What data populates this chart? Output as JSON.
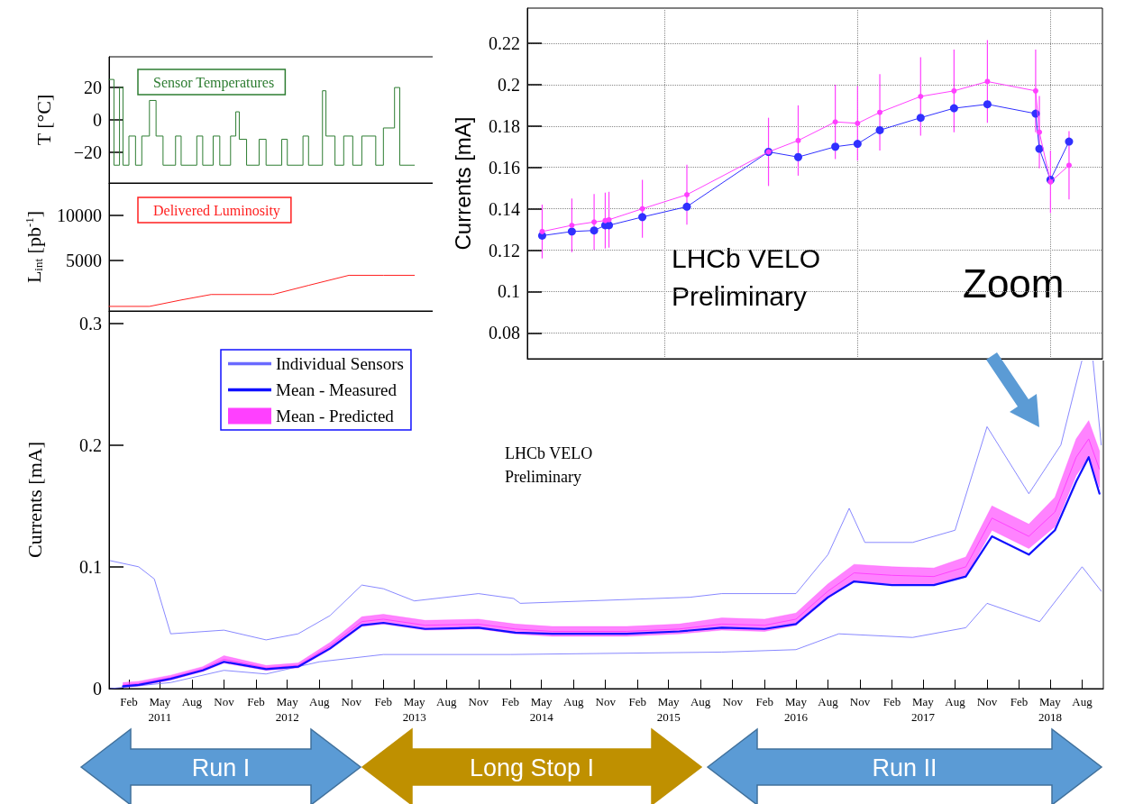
{
  "chart_data": [
    {
      "type": "step",
      "ylabel": "T [°C]",
      "xlim": [
        "2010-12-06",
        "2018-10-01"
      ],
      "ylim": [
        -39,
        39
      ],
      "yticks": [
        {
          "value": -20,
          "label": "−20"
        },
        0,
        20
      ],
      "tick_labels": "y",
      "grid": false,
      "legend": "top left",
      "marker": "none",
      "series": [
        {
          "name": "Sensor Temperatures",
          "color": "#2e7d32",
          "x": [
            "2010-12-06",
            "2010-12-20",
            "2011-01-05",
            "2011-01-15",
            "2011-02-01",
            "2011-02-20",
            "2011-03-10",
            "2011-04-01",
            "2011-04-20",
            "2011-05-10",
            "2011-06-15",
            "2011-07-01",
            "2011-08-15",
            "2011-09-01",
            "2011-10-01",
            "2011-10-20",
            "2011-11-20",
            "2011-12-05",
            "2011-12-15",
            "2012-01-05",
            "2012-02-10",
            "2012-03-01",
            "2012-04-15",
            "2012-05-01",
            "2012-06-15",
            "2012-07-01",
            "2012-08-10",
            "2012-08-20",
            "2012-09-15",
            "2012-10-10",
            "2012-11-05",
            "2012-12-01",
            "2013-01-10",
            "2013-02-01",
            "2013-03-05",
            "2013-03-20",
            "2013-05-01"
          ],
          "values": [
            25,
            -28,
            20,
            -28,
            -10,
            -28,
            -10,
            12,
            -10,
            -28,
            -10,
            -28,
            -10,
            -28,
            -10,
            -28,
            -10,
            5,
            -12,
            -28,
            -12,
            -28,
            -12,
            -28,
            -10,
            -28,
            18,
            -10,
            -28,
            -10,
            -28,
            -10,
            -28,
            -5,
            20,
            -28,
            -28
          ]
        }
      ]
    },
    {
      "type": "line",
      "ylabel": "L$_{int}$ [pb$^{-1}$]",
      "xlim": [
        "2010-12-06",
        "2018-10-01"
      ],
      "ylim": [
        -500,
        13500
      ],
      "yticks": [
        5000,
        10000
      ],
      "tick_labels": "y",
      "grid": false,
      "legend": "top left",
      "marker": "none",
      "series": [
        {
          "name": "Delivered Luminosity",
          "color": "#ff2020",
          "x": [
            "2010-12-06",
            "2011-04-01",
            "2011-07-01",
            "2011-09-25",
            "2012-03-20",
            "2012-07-01",
            "2012-10-25",
            "2013-02-01",
            "2013-05-01"
          ],
          "values": [
            0,
            0,
            700,
            1300,
            1300,
            2300,
            3400,
            3400,
            3400
          ]
        }
      ]
    },
    {
      "type": "line",
      "ylabel": "Currents [mA]",
      "xlim": [
        "2010-12-06",
        "2018-10-01"
      ],
      "ylim": [
        0,
        0.31
      ],
      "yticks": [
        0,
        0.1,
        0.2,
        0.3
      ],
      "grid": false,
      "legend": "top left",
      "marker": "none",
      "xticks": [
        {
          "value": "2011-02-01",
          "label": "Feb"
        },
        {
          "value": "2011-05-01",
          "label": "May\n2011"
        },
        {
          "value": "2011-08-01",
          "label": "Aug"
        },
        {
          "value": "2011-11-01",
          "label": "Nov"
        },
        {
          "value": "2012-02-01",
          "label": "Feb"
        },
        {
          "value": "2012-05-01",
          "label": "May\n2012"
        },
        {
          "value": "2012-08-01",
          "label": "Aug"
        },
        {
          "value": "2012-11-01",
          "label": "Nov"
        },
        {
          "value": "2013-02-01",
          "label": "Feb"
        },
        {
          "value": "2013-05-01",
          "label": "May\n2013"
        },
        {
          "value": "2013-08-01",
          "label": "Aug"
        },
        {
          "value": "2013-11-01",
          "label": "Nov"
        },
        {
          "value": "2014-02-01",
          "label": "Feb"
        },
        {
          "value": "2014-05-01",
          "label": "May\n2014"
        },
        {
          "value": "2014-08-01",
          "label": "Aug"
        },
        {
          "value": "2014-11-01",
          "label": "Nov"
        },
        {
          "value": "2015-02-01",
          "label": "Feb"
        },
        {
          "value": "2015-05-01",
          "label": "May\n2015"
        },
        {
          "value": "2015-08-01",
          "label": "Aug"
        },
        {
          "value": "2015-11-01",
          "label": "Nov"
        },
        {
          "value": "2016-02-01",
          "label": "Feb"
        },
        {
          "value": "2016-05-01",
          "label": "May\n2016"
        },
        {
          "value": "2016-08-01",
          "label": "Aug"
        },
        {
          "value": "2016-11-01",
          "label": "Nov"
        },
        {
          "value": "2017-02-01",
          "label": "Feb"
        },
        {
          "value": "2017-05-01",
          "label": "May\n2017"
        },
        {
          "value": "2017-08-01",
          "label": "Aug"
        },
        {
          "value": "2017-11-01",
          "label": "Nov"
        },
        {
          "value": "2018-02-01",
          "label": "Feb"
        },
        {
          "value": "2018-05-01",
          "label": "May\n2018"
        },
        {
          "value": "2018-08-01",
          "label": "Aug"
        }
      ],
      "annotations": [
        "LHCb VELO\nPreliminary",
        "Run I",
        "Long Stop I",
        "Run II"
      ],
      "series": [
        {
          "name": "Individual Sensors",
          "color": "#6a6aff",
          "x": [
            "2010-12-10",
            "2011-03-01",
            "2011-04-15",
            "2011-06-01",
            "2011-11-01",
            "2012-03-01",
            "2012-06-01",
            "2012-09-01",
            "2012-12-01",
            "2013-02-01",
            "2013-05-01",
            "2013-11-01",
            "2014-02-10",
            "2014-03-01",
            "2015-07-01",
            "2015-10-01",
            "2016-05-01",
            "2016-08-01",
            "2016-10-01",
            "2016-11-15",
            "2017-04-01",
            "2017-08-01",
            "2017-11-01",
            "2018-03-01",
            "2018-06-01",
            "2018-08-01",
            "2018-09-01",
            "2018-09-25"
          ],
          "values": [
            0.105,
            0.1,
            0.09,
            0.045,
            0.048,
            0.04,
            0.045,
            0.06,
            0.085,
            0.082,
            0.072,
            0.078,
            0.074,
            0.07,
            0.075,
            0.078,
            0.078,
            0.11,
            0.148,
            0.12,
            0.12,
            0.13,
            0.215,
            0.16,
            0.2,
            0.27,
            0.27,
            0.2
          ]
        },
        {
          "color": "#6a6aff",
          "x": [
            "2010-12-10",
            "2011-06-01",
            "2011-11-01",
            "2012-03-01",
            "2012-08-01",
            "2013-02-01",
            "2014-02-01",
            "2015-10-01",
            "2016-05-01",
            "2016-09-01",
            "2017-04-01",
            "2017-09-01",
            "2017-11-01",
            "2018-04-01",
            "2018-08-01",
            "2018-09-25"
          ],
          "values": [
            0.0,
            0.005,
            0.015,
            0.012,
            0.022,
            0.028,
            0.028,
            0.03,
            0.032,
            0.045,
            0.042,
            0.05,
            0.07,
            0.055,
            0.1,
            0.08
          ]
        },
        {
          "name": "Mean - Measured",
          "color": "#1010ff",
          "x": [
            "2011-01-15",
            "2011-03-01",
            "2011-06-01",
            "2011-09-01",
            "2011-11-01",
            "2012-03-01",
            "2012-06-01",
            "2012-09-01",
            "2012-12-01",
            "2013-02-01",
            "2013-06-01",
            "2013-11-01",
            "2014-02-15",
            "2014-06-01",
            "2015-01-01",
            "2015-06-01",
            "2015-10-01",
            "2016-02-01",
            "2016-05-01",
            "2016-08-01",
            "2016-10-15",
            "2017-02-01",
            "2017-06-01",
            "2017-09-01",
            "2017-11-15",
            "2018-03-01",
            "2018-05-15",
            "2018-07-15",
            "2018-08-20",
            "2018-09-20"
          ],
          "values": [
            0.002,
            0.003,
            0.008,
            0.015,
            0.022,
            0.016,
            0.018,
            0.033,
            0.052,
            0.054,
            0.049,
            0.05,
            0.046,
            0.045,
            0.045,
            0.047,
            0.05,
            0.049,
            0.053,
            0.075,
            0.088,
            0.085,
            0.085,
            0.092,
            0.125,
            0.11,
            0.13,
            0.17,
            0.19,
            0.16
          ]
        },
        {
          "name": "Mean - Predicted",
          "color": "#ff40ff",
          "x": [
            "2011-01-15",
            "2011-03-01",
            "2011-06-01",
            "2011-09-01",
            "2011-11-01",
            "2012-03-01",
            "2012-06-01",
            "2012-09-01",
            "2012-12-01",
            "2013-02-01",
            "2013-06-01",
            "2013-11-01",
            "2014-02-15",
            "2014-06-01",
            "2015-01-01",
            "2015-06-01",
            "2015-10-01",
            "2016-02-01",
            "2016-05-01",
            "2016-08-01",
            "2016-10-15",
            "2017-02-01",
            "2017-06-01",
            "2017-09-01",
            "2017-11-15",
            "2018-03-01",
            "2018-05-15",
            "2018-07-15",
            "2018-08-20",
            "2018-09-20"
          ],
          "values": [
            0.003,
            0.004,
            0.009,
            0.016,
            0.024,
            0.017,
            0.019,
            0.035,
            0.055,
            0.057,
            0.052,
            0.053,
            0.049,
            0.047,
            0.047,
            0.049,
            0.053,
            0.052,
            0.057,
            0.08,
            0.095,
            0.093,
            0.092,
            0.1,
            0.14,
            0.125,
            0.145,
            0.19,
            0.205,
            0.18
          ],
          "lower": [
            0.001,
            0.002,
            0.007,
            0.014,
            0.021,
            0.015,
            0.017,
            0.032,
            0.051,
            0.053,
            0.048,
            0.049,
            0.045,
            0.043,
            0.043,
            0.045,
            0.048,
            0.047,
            0.052,
            0.074,
            0.088,
            0.086,
            0.085,
            0.092,
            0.13,
            0.115,
            0.133,
            0.175,
            0.19,
            0.165
          ],
          "upper": [
            0.005,
            0.006,
            0.011,
            0.018,
            0.027,
            0.019,
            0.021,
            0.038,
            0.059,
            0.061,
            0.056,
            0.057,
            0.053,
            0.051,
            0.051,
            0.053,
            0.058,
            0.057,
            0.062,
            0.086,
            0.102,
            0.1,
            0.099,
            0.108,
            0.15,
            0.135,
            0.157,
            0.205,
            0.22,
            0.195
          ]
        }
      ]
    },
    {
      "type": "line",
      "ylabel": "Currents [mA]",
      "ylim": [
        0.0675,
        0.237
      ],
      "yticks": [
        0.08,
        0.1,
        0.12,
        0.14,
        0.16,
        0.18,
        0.2,
        0.22
      ],
      "tick_labels": "y",
      "grid": true,
      "marker": "circle",
      "categories": [
        null,
        null,
        null,
        null,
        null,
        null,
        null,
        null,
        null,
        null,
        null,
        null,
        null,
        null,
        null,
        null,
        null,
        null,
        null,
        null,
        null,
        null,
        null,
        null,
        null,
        null,
        null,
        null,
        null,
        null,
        null,
        null,
        null,
        null,
        null,
        null,
        null,
        null,
        null,
        null,
        null,
        null,
        null,
        null,
        null,
        null,
        null,
        null,
        null,
        null,
        null,
        null,
        null,
        null,
        null,
        null,
        null,
        null,
        null,
        null,
        null,
        null,
        null,
        null,
        null,
        null,
        null,
        null,
        null,
        null,
        null,
        null,
        null,
        null,
        null,
        null,
        null,
        null,
        null,
        null,
        null,
        null,
        null,
        null,
        null,
        null,
        null,
        null,
        null,
        null,
        null,
        null,
        null,
        null,
        null,
        null,
        null,
        null,
        null,
        null,
        null,
        null,
        null,
        null,
        null,
        null,
        null,
        null,
        null,
        null,
        null,
        null,
        null,
        null,
        null,
        null,
        null,
        null,
        null,
        null,
        null,
        null,
        null,
        null,
        null,
        null,
        null,
        null,
        null,
        null,
        null,
        null,
        null,
        null,
        null,
        null,
        null,
        null,
        null,
        null,
        null,
        null,
        null,
        null,
        null,
        null,
        null,
        null,
        null,
        null,
        null,
        null,
        null,
        null,
        null,
        null
      ],
      "annotations": [
        "LHCb VELO\nPreliminary",
        "Zoom"
      ],
      "series": [
        {
          "color": "#3030ff",
          "values": [
            null,
            null,
            null,
            null,
            0.127,
            null,
            null,
            null,
            null,
            null,
            null,
            null,
            0.129,
            null,
            null,
            null,
            null,
            null,
            0.1295,
            null,
            null,
            0.132,
            0.132,
            null,
            null,
            null,
            null,
            null,
            null,
            null,
            null,
            0.136,
            null,
            null,
            null,
            null,
            null,
            null,
            null,
            null,
            null,
            null,
            null,
            0.141,
            null,
            null,
            null,
            null,
            null,
            null,
            null,
            null,
            null,
            null,
            null,
            null,
            null,
            null,
            null,
            null,
            null,
            null,
            null,
            null,
            null,
            0.1675,
            null,
            null,
            null,
            null,
            null,
            null,
            null,
            0.165,
            null,
            null,
            null,
            null,
            null,
            null,
            null,
            null,
            null,
            0.17,
            null,
            null,
            null,
            null,
            null,
            0.1714,
            null,
            null,
            null,
            null,
            null,
            0.178,
            null,
            null,
            null,
            null,
            null,
            null,
            null,
            null,
            null,
            null,
            0.184,
            null,
            null,
            null,
            null,
            null,
            null,
            null,
            null,
            0.1886,
            null,
            null,
            null,
            null,
            null,
            null,
            null,
            null,
            0.1905,
            null,
            null,
            null,
            null,
            null,
            null,
            null,
            null,
            null,
            null,
            null,
            null,
            0.186,
            0.169,
            null,
            null,
            0.154,
            null,
            null,
            null,
            null,
            0.1725,
            null,
            null,
            null,
            null,
            null,
            null,
            null,
            null,
            null
          ]
        },
        {
          "color": "#ff40ff",
          "values": [
            null,
            null,
            null,
            null,
            0.129,
            null,
            null,
            null,
            null,
            null,
            null,
            null,
            0.132,
            null,
            null,
            null,
            null,
            null,
            0.1336,
            null,
            null,
            0.1343,
            0.1347,
            null,
            null,
            null,
            null,
            null,
            null,
            null,
            null,
            0.14,
            null,
            null,
            null,
            null,
            null,
            null,
            null,
            null,
            null,
            null,
            null,
            0.1468,
            null,
            null,
            null,
            null,
            null,
            null,
            null,
            null,
            null,
            null,
            null,
            null,
            null,
            null,
            null,
            null,
            null,
            null,
            null,
            null,
            null,
            0.1675,
            null,
            null,
            null,
            null,
            null,
            null,
            null,
            0.173,
            null,
            null,
            null,
            null,
            null,
            null,
            null,
            null,
            null,
            0.182,
            null,
            null,
            null,
            null,
            null,
            0.1813,
            null,
            null,
            null,
            null,
            null,
            0.1866,
            null,
            null,
            null,
            null,
            null,
            null,
            null,
            null,
            null,
            null,
            0.1943,
            null,
            null,
            null,
            null,
            null,
            null,
            null,
            null,
            0.197,
            null,
            null,
            null,
            null,
            null,
            null,
            null,
            null,
            0.2015,
            null,
            null,
            null,
            null,
            null,
            null,
            null,
            null,
            null,
            null,
            null,
            null,
            0.197,
            0.177,
            null,
            null,
            0.153,
            null,
            null,
            null,
            null,
            0.161,
            null,
            null,
            null,
            null,
            null,
            null,
            null,
            null,
            null
          ],
          "errors": [
            null,
            null,
            null,
            null,
            0.013,
            null,
            null,
            null,
            null,
            null,
            null,
            null,
            0.013,
            null,
            null,
            null,
            null,
            null,
            0.0135,
            null,
            null,
            0.0135,
            0.0135,
            null,
            null,
            null,
            null,
            null,
            null,
            null,
            null,
            0.014,
            null,
            null,
            null,
            null,
            null,
            null,
            null,
            null,
            null,
            null,
            null,
            0.0145,
            null,
            null,
            null,
            null,
            null,
            null,
            null,
            null,
            null,
            null,
            null,
            null,
            null,
            null,
            null,
            null,
            null,
            null,
            null,
            null,
            null,
            0.0165,
            null,
            null,
            null,
            null,
            null,
            null,
            null,
            0.017,
            null,
            null,
            null,
            null,
            null,
            null,
            null,
            null,
            null,
            0.018,
            null,
            null,
            null,
            null,
            null,
            0.018,
            null,
            null,
            null,
            null,
            null,
            0.0185,
            null,
            null,
            null,
            null,
            null,
            null,
            null,
            null,
            null,
            null,
            0.019,
            null,
            null,
            null,
            null,
            null,
            null,
            null,
            null,
            0.02,
            null,
            null,
            null,
            null,
            null,
            null,
            null,
            null,
            0.02,
            null,
            null,
            null,
            null,
            null,
            null,
            null,
            null,
            null,
            null,
            null,
            null,
            0.02,
            0.0175,
            null,
            null,
            0.015,
            null,
            null,
            null,
            null,
            0.0165,
            null,
            null,
            null,
            null,
            null,
            null,
            null,
            null,
            null
          ]
        }
      ]
    }
  ]
}
